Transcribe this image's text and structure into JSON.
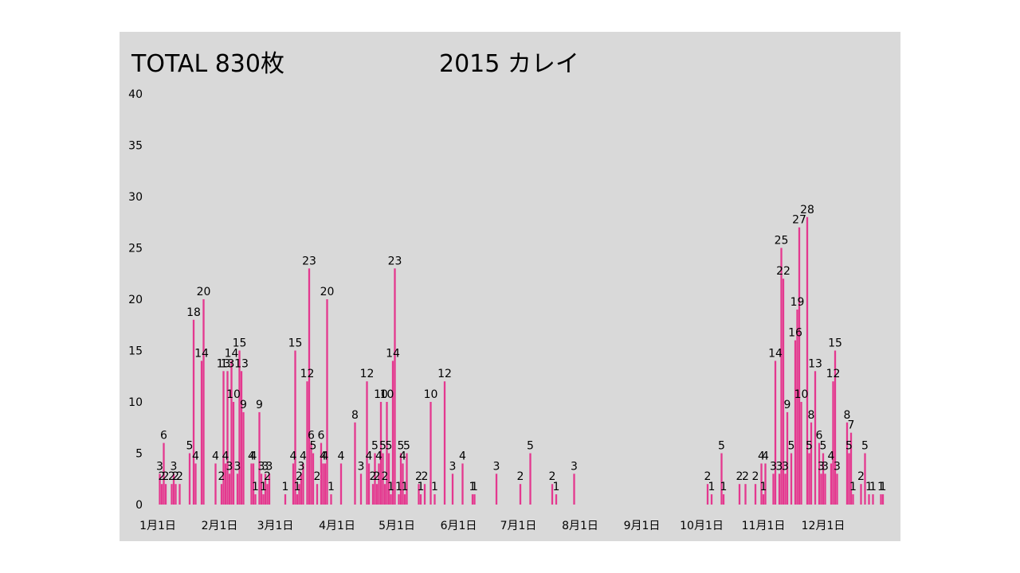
{
  "header": {
    "total_label": "TOTAL 830枚",
    "title": "2015 カレイ"
  },
  "colors": {
    "bar": "#e4388f",
    "plot_background": "#d9d9d9",
    "slide_background": "#ffffff"
  },
  "chart_data": {
    "type": "bar",
    "title": "2015 カレイ",
    "xlabel": "",
    "ylabel": "",
    "ylim": [
      0,
      40
    ],
    "yticks": [
      0,
      5,
      10,
      15,
      20,
      25,
      30,
      35,
      40
    ],
    "xlim": [
      "2015-01-01",
      "2015-12-31"
    ],
    "xticks": [
      {
        "date": "2015-01-01",
        "label": "1月1日"
      },
      {
        "date": "2015-02-01",
        "label": "2月1日"
      },
      {
        "date": "2015-03-01",
        "label": "3月1日"
      },
      {
        "date": "2015-04-01",
        "label": "4月1日"
      },
      {
        "date": "2015-05-01",
        "label": "5月1日"
      },
      {
        "date": "2015-06-01",
        "label": "6月1日"
      },
      {
        "date": "2015-07-01",
        "label": "7月1日"
      },
      {
        "date": "2015-08-01",
        "label": "8月1日"
      },
      {
        "date": "2015-09-01",
        "label": "9月1日"
      },
      {
        "date": "2015-10-01",
        "label": "10月1日"
      },
      {
        "date": "2015-11-01",
        "label": "11月1日"
      },
      {
        "date": "2015-12-01",
        "label": "12月1日"
      }
    ],
    "grid": false,
    "legend": "none",
    "points": [
      {
        "date": "2015-01-02",
        "value": 3
      },
      {
        "date": "2015-01-03",
        "value": 2
      },
      {
        "date": "2015-01-04",
        "value": 6
      },
      {
        "date": "2015-01-05",
        "value": 2
      },
      {
        "date": "2015-01-08",
        "value": 2
      },
      {
        "date": "2015-01-09",
        "value": 3
      },
      {
        "date": "2015-01-10",
        "value": 2
      },
      {
        "date": "2015-01-12",
        "value": 2
      },
      {
        "date": "2015-01-17",
        "value": 5
      },
      {
        "date": "2015-01-19",
        "value": 18
      },
      {
        "date": "2015-01-20",
        "value": 4
      },
      {
        "date": "2015-01-23",
        "value": 14
      },
      {
        "date": "2015-01-24",
        "value": 20
      },
      {
        "date": "2015-01-30",
        "value": 4
      },
      {
        "date": "2015-02-02",
        "value": 2
      },
      {
        "date": "2015-02-03",
        "value": 13
      },
      {
        "date": "2015-02-04",
        "value": 4
      },
      {
        "date": "2015-02-05",
        "value": 13
      },
      {
        "date": "2015-02-06",
        "value": 3
      },
      {
        "date": "2015-02-07",
        "value": 14
      },
      {
        "date": "2015-02-08",
        "value": 10
      },
      {
        "date": "2015-02-10",
        "value": 3
      },
      {
        "date": "2015-02-11",
        "value": 15
      },
      {
        "date": "2015-02-12",
        "value": 13
      },
      {
        "date": "2015-02-13",
        "value": 9
      },
      {
        "date": "2015-02-17",
        "value": 4
      },
      {
        "date": "2015-02-18",
        "value": 4
      },
      {
        "date": "2015-02-19",
        "value": 1
      },
      {
        "date": "2015-02-21",
        "value": 9
      },
      {
        "date": "2015-02-22",
        "value": 3
      },
      {
        "date": "2015-02-23",
        "value": 1
      },
      {
        "date": "2015-02-24",
        "value": 3
      },
      {
        "date": "2015-02-25",
        "value": 2
      },
      {
        "date": "2015-02-26",
        "value": 3
      },
      {
        "date": "2015-03-06",
        "value": 1
      },
      {
        "date": "2015-03-10",
        "value": 4
      },
      {
        "date": "2015-03-11",
        "value": 15
      },
      {
        "date": "2015-03-12",
        "value": 1
      },
      {
        "date": "2015-03-13",
        "value": 2
      },
      {
        "date": "2015-03-14",
        "value": 3
      },
      {
        "date": "2015-03-15",
        "value": 4
      },
      {
        "date": "2015-03-17",
        "value": 12
      },
      {
        "date": "2015-03-18",
        "value": 23
      },
      {
        "date": "2015-03-19",
        "value": 6
      },
      {
        "date": "2015-03-20",
        "value": 5
      },
      {
        "date": "2015-03-22",
        "value": 2
      },
      {
        "date": "2015-03-24",
        "value": 6
      },
      {
        "date": "2015-03-25",
        "value": 4
      },
      {
        "date": "2015-03-26",
        "value": 4
      },
      {
        "date": "2015-03-27",
        "value": 20
      },
      {
        "date": "2015-03-29",
        "value": 1
      },
      {
        "date": "2015-04-03",
        "value": 4
      },
      {
        "date": "2015-04-10",
        "value": 8
      },
      {
        "date": "2015-04-13",
        "value": 3
      },
      {
        "date": "2015-04-16",
        "value": 12
      },
      {
        "date": "2015-04-17",
        "value": 4
      },
      {
        "date": "2015-04-19",
        "value": 2
      },
      {
        "date": "2015-04-20",
        "value": 5
      },
      {
        "date": "2015-04-21",
        "value": 2
      },
      {
        "date": "2015-04-22",
        "value": 4
      },
      {
        "date": "2015-04-23",
        "value": 10
      },
      {
        "date": "2015-04-24",
        "value": 5
      },
      {
        "date": "2015-04-25",
        "value": 2
      },
      {
        "date": "2015-04-26",
        "value": 10
      },
      {
        "date": "2015-04-27",
        "value": 5
      },
      {
        "date": "2015-04-28",
        "value": 1
      },
      {
        "date": "2015-04-29",
        "value": 14
      },
      {
        "date": "2015-04-30",
        "value": 23
      },
      {
        "date": "2015-05-02",
        "value": 1
      },
      {
        "date": "2015-05-03",
        "value": 5
      },
      {
        "date": "2015-05-04",
        "value": 4
      },
      {
        "date": "2015-05-05",
        "value": 1
      },
      {
        "date": "2015-05-06",
        "value": 5
      },
      {
        "date": "2015-05-12",
        "value": 2
      },
      {
        "date": "2015-05-13",
        "value": 1
      },
      {
        "date": "2015-05-15",
        "value": 2
      },
      {
        "date": "2015-05-18",
        "value": 10
      },
      {
        "date": "2015-05-20",
        "value": 1
      },
      {
        "date": "2015-05-25",
        "value": 12
      },
      {
        "date": "2015-05-29",
        "value": 3
      },
      {
        "date": "2015-06-03",
        "value": 4
      },
      {
        "date": "2015-06-08",
        "value": 1
      },
      {
        "date": "2015-06-09",
        "value": 1
      },
      {
        "date": "2015-06-20",
        "value": 3
      },
      {
        "date": "2015-07-02",
        "value": 2
      },
      {
        "date": "2015-07-07",
        "value": 5
      },
      {
        "date": "2015-07-18",
        "value": 2
      },
      {
        "date": "2015-07-20",
        "value": 1
      },
      {
        "date": "2015-07-29",
        "value": 3
      },
      {
        "date": "2015-10-04",
        "value": 2
      },
      {
        "date": "2015-10-06",
        "value": 1
      },
      {
        "date": "2015-10-11",
        "value": 5
      },
      {
        "date": "2015-10-12",
        "value": 1
      },
      {
        "date": "2015-10-20",
        "value": 2
      },
      {
        "date": "2015-10-23",
        "value": 2
      },
      {
        "date": "2015-10-28",
        "value": 2
      },
      {
        "date": "2015-10-31",
        "value": 4
      },
      {
        "date": "2015-11-01",
        "value": 1
      },
      {
        "date": "2015-11-02",
        "value": 4
      },
      {
        "date": "2015-11-06",
        "value": 3
      },
      {
        "date": "2015-11-07",
        "value": 14
      },
      {
        "date": "2015-11-09",
        "value": 3
      },
      {
        "date": "2015-11-10",
        "value": 25
      },
      {
        "date": "2015-11-11",
        "value": 22
      },
      {
        "date": "2015-11-12",
        "value": 3
      },
      {
        "date": "2015-11-13",
        "value": 9
      },
      {
        "date": "2015-11-15",
        "value": 5
      },
      {
        "date": "2015-11-17",
        "value": 16
      },
      {
        "date": "2015-11-18",
        "value": 19
      },
      {
        "date": "2015-11-19",
        "value": 27
      },
      {
        "date": "2015-11-20",
        "value": 10
      },
      {
        "date": "2015-11-23",
        "value": 28
      },
      {
        "date": "2015-11-24",
        "value": 5
      },
      {
        "date": "2015-11-25",
        "value": 8
      },
      {
        "date": "2015-11-27",
        "value": 13
      },
      {
        "date": "2015-11-29",
        "value": 6
      },
      {
        "date": "2015-11-30",
        "value": 3
      },
      {
        "date": "2015-12-01",
        "value": 5
      },
      {
        "date": "2015-12-02",
        "value": 3
      },
      {
        "date": "2015-12-05",
        "value": 4
      },
      {
        "date": "2015-12-06",
        "value": 12
      },
      {
        "date": "2015-12-07",
        "value": 15
      },
      {
        "date": "2015-12-08",
        "value": 3
      },
      {
        "date": "2015-12-13",
        "value": 8
      },
      {
        "date": "2015-12-14",
        "value": 5
      },
      {
        "date": "2015-12-15",
        "value": 7
      },
      {
        "date": "2015-12-16",
        "value": 1
      },
      {
        "date": "2015-12-20",
        "value": 2
      },
      {
        "date": "2015-12-22",
        "value": 5
      },
      {
        "date": "2015-12-24",
        "value": 1
      },
      {
        "date": "2015-12-26",
        "value": 1
      },
      {
        "date": "2015-12-30",
        "value": 1
      },
      {
        "date": "2015-12-31",
        "value": 1
      }
    ]
  }
}
